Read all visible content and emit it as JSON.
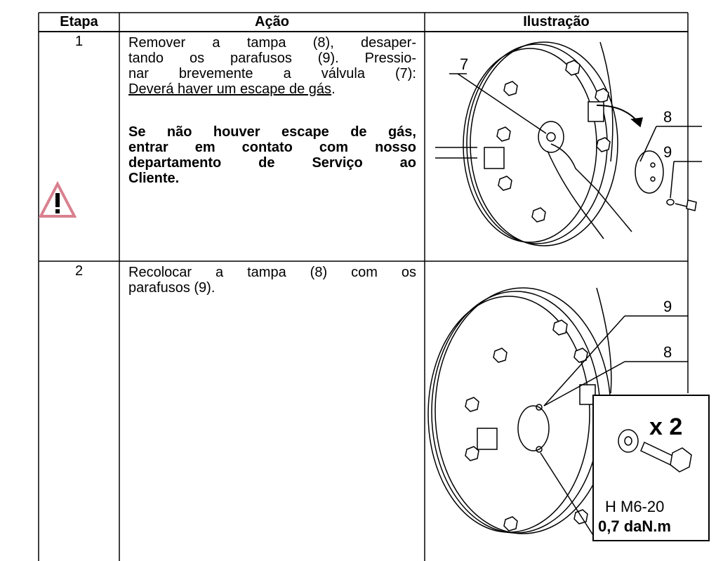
{
  "table": {
    "header": [
      "Etapa",
      "Ação",
      "Ilustração"
    ],
    "rows": [
      {
        "step": "1",
        "action_lines": [
          "Remover a tampa (8), desaper-",
          "tando os parafusos (9). Pressio-",
          "nar brevemente a válvula (7):"
        ],
        "action_underlined": "Deverá haver um escape de gás",
        "action_end": ".",
        "warning_lines": [
          "Se não houver escape de gás,",
          "entrar em contato com nosso",
          "departamento de Serviço ao",
          "Cliente."
        ],
        "illustration_labels": [
          "7",
          "8",
          "9"
        ]
      },
      {
        "step": "2",
        "action_lines": [
          "Recolocar a tampa (8) com os",
          "parafusos (9)."
        ],
        "illustration_labels": [
          "9",
          "8",
          "x 2",
          "H M6-20",
          "0,7 daN.m"
        ]
      }
    ]
  }
}
